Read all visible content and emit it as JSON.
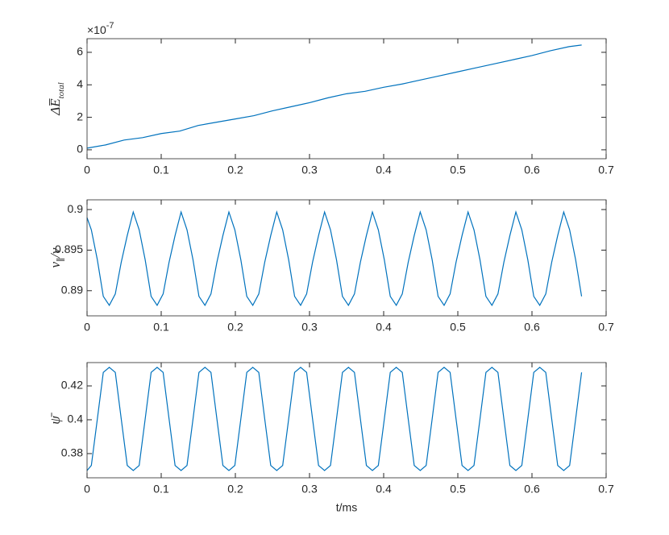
{
  "chart_data": [
    {
      "type": "line",
      "color": "#0072bd",
      "xlim": [
        0,
        0.7
      ],
      "xticks": [
        0,
        0.1,
        0.2,
        0.3,
        0.4,
        0.5,
        0.6,
        0.7
      ],
      "ylim": [
        -0.55,
        6.84
      ],
      "yticks": [
        0,
        2,
        4,
        6
      ],
      "exponent_base": "×10",
      "exponent": "-7",
      "ylabel": [
        {
          "text": "ΔE̅"
        },
        {
          "text": "total",
          "sub": true
        }
      ],
      "x": [
        0,
        0.025,
        0.05,
        0.075,
        0.1,
        0.125,
        0.15,
        0.175,
        0.2,
        0.225,
        0.25,
        0.275,
        0.3,
        0.325,
        0.35,
        0.375,
        0.4,
        0.425,
        0.45,
        0.475,
        0.5,
        0.525,
        0.55,
        0.575,
        0.6,
        0.625,
        0.65,
        0.667
      ],
      "values": [
        0.1,
        0.3,
        0.6,
        0.75,
        1.0,
        1.15,
        1.5,
        1.7,
        1.9,
        2.1,
        2.4,
        2.65,
        2.9,
        3.2,
        3.45,
        3.6,
        3.85,
        4.05,
        4.3,
        4.55,
        4.8,
        5.05,
        5.3,
        5.55,
        5.8,
        6.1,
        6.35,
        6.45
      ]
    },
    {
      "type": "line",
      "color": "#0072bd",
      "xlim": [
        0,
        0.7
      ],
      "xticks": [
        0,
        0.1,
        0.2,
        0.3,
        0.4,
        0.5,
        0.6,
        0.7
      ],
      "ylim": [
        0.8869,
        0.9012
      ],
      "yticks": [
        0.89,
        0.895,
        0.9
      ],
      "ylabel": [
        {
          "text": "v"
        },
        {
          "text": "∥",
          "sub": true
        },
        {
          "text": "/v"
        }
      ],
      "x": [
        0,
        0.0058,
        0.0139,
        0.0219,
        0.03,
        0.0381,
        0.0461,
        0.0542,
        0.0623,
        0.0703,
        0.0784,
        0.0864,
        0.0945,
        0.1026,
        0.1106,
        0.1187,
        0.1268,
        0.1348,
        0.1429,
        0.1509,
        0.159,
        0.1671,
        0.1751,
        0.1832,
        0.1913,
        0.1993,
        0.2074,
        0.2154,
        0.2235,
        0.2316,
        0.2396,
        0.2477,
        0.2558,
        0.2638,
        0.2719,
        0.2799,
        0.288,
        0.2961,
        0.3041,
        0.3122,
        0.3203,
        0.3283,
        0.3364,
        0.3444,
        0.3525,
        0.3606,
        0.3686,
        0.3767,
        0.3848,
        0.3928,
        0.4009,
        0.4089,
        0.417,
        0.4251,
        0.4331,
        0.4412,
        0.4493,
        0.4573,
        0.4654,
        0.4734,
        0.4815,
        0.4896,
        0.4976,
        0.5057,
        0.5138,
        0.5218,
        0.5299,
        0.5379,
        0.546,
        0.5541,
        0.5621,
        0.5702,
        0.5783,
        0.5863,
        0.5944,
        0.6024,
        0.6105,
        0.6186,
        0.6266,
        0.6347,
        0.6428,
        0.6508,
        0.6589,
        0.6669
      ],
      "values": [
        0.899,
        0.8975,
        0.8938,
        0.8893,
        0.8882,
        0.8896,
        0.8935,
        0.8968,
        0.8997,
        0.8975,
        0.8938,
        0.8893,
        0.8882,
        0.8896,
        0.8935,
        0.8968,
        0.8997,
        0.8975,
        0.8938,
        0.8893,
        0.8882,
        0.8896,
        0.8935,
        0.8968,
        0.8997,
        0.8975,
        0.8938,
        0.8893,
        0.8882,
        0.8896,
        0.8935,
        0.8968,
        0.8997,
        0.8975,
        0.8938,
        0.8893,
        0.8882,
        0.8896,
        0.8935,
        0.8968,
        0.8997,
        0.8975,
        0.8938,
        0.8893,
        0.8882,
        0.8896,
        0.8935,
        0.8968,
        0.8997,
        0.8975,
        0.8938,
        0.8893,
        0.8882,
        0.8896,
        0.8935,
        0.8968,
        0.8997,
        0.8975,
        0.8938,
        0.8893,
        0.8882,
        0.8896,
        0.8935,
        0.8968,
        0.8997,
        0.8975,
        0.8938,
        0.8893,
        0.8882,
        0.8896,
        0.8935,
        0.8968,
        0.8997,
        0.8975,
        0.8938,
        0.8893,
        0.8882,
        0.8896,
        0.8935,
        0.8968,
        0.8997,
        0.8975,
        0.8938,
        0.8893
      ]
    },
    {
      "type": "line",
      "color": "#0072bd",
      "xlim": [
        0,
        0.7
      ],
      "xticks": [
        0,
        0.1,
        0.2,
        0.3,
        0.4,
        0.5,
        0.6,
        0.7
      ],
      "ylim": [
        0.3657,
        0.4338
      ],
      "yticks": [
        0.38,
        0.4,
        0.42
      ],
      "ylabel": [
        {
          "text": "ψ̄"
        }
      ],
      "xlabel": "t/ms",
      "x": [
        0,
        0.0058,
        0.0139,
        0.0219,
        0.03,
        0.0381,
        0.0461,
        0.0542,
        0.0623,
        0.0703,
        0.0784,
        0.0864,
        0.0945,
        0.1026,
        0.1106,
        0.1187,
        0.1268,
        0.1348,
        0.1429,
        0.1509,
        0.159,
        0.1671,
        0.1751,
        0.1832,
        0.1913,
        0.1993,
        0.2074,
        0.2154,
        0.2235,
        0.2316,
        0.2396,
        0.2477,
        0.2558,
        0.2638,
        0.2719,
        0.2799,
        0.288,
        0.2961,
        0.3041,
        0.3122,
        0.3203,
        0.3283,
        0.3364,
        0.3444,
        0.3525,
        0.3606,
        0.3686,
        0.3767,
        0.3848,
        0.3928,
        0.4009,
        0.4089,
        0.417,
        0.4251,
        0.4331,
        0.4412,
        0.4493,
        0.4573,
        0.4654,
        0.4734,
        0.4815,
        0.4896,
        0.4976,
        0.5057,
        0.5138,
        0.5218,
        0.5299,
        0.5379,
        0.546,
        0.5541,
        0.5621,
        0.5702,
        0.5783,
        0.5863,
        0.5944,
        0.6024,
        0.6105,
        0.6186,
        0.6266,
        0.6347,
        0.6428,
        0.6508,
        0.6589,
        0.6669
      ],
      "values": [
        0.37,
        0.373,
        0.4005,
        0.428,
        0.431,
        0.428,
        0.4005,
        0.373,
        0.37,
        0.373,
        0.4005,
        0.428,
        0.431,
        0.428,
        0.4005,
        0.373,
        0.37,
        0.373,
        0.4005,
        0.428,
        0.431,
        0.428,
        0.4005,
        0.373,
        0.37,
        0.373,
        0.4005,
        0.428,
        0.431,
        0.428,
        0.4005,
        0.373,
        0.37,
        0.373,
        0.4005,
        0.428,
        0.431,
        0.428,
        0.4005,
        0.373,
        0.37,
        0.373,
        0.4005,
        0.428,
        0.431,
        0.428,
        0.4005,
        0.373,
        0.37,
        0.373,
        0.4005,
        0.428,
        0.431,
        0.428,
        0.4005,
        0.373,
        0.37,
        0.373,
        0.4005,
        0.428,
        0.431,
        0.428,
        0.4005,
        0.373,
        0.37,
        0.373,
        0.4005,
        0.428,
        0.431,
        0.428,
        0.4005,
        0.373,
        0.37,
        0.373,
        0.4005,
        0.428,
        0.431,
        0.428,
        0.4005,
        0.373,
        0.37,
        0.373,
        0.4005,
        0.428
      ]
    }
  ]
}
